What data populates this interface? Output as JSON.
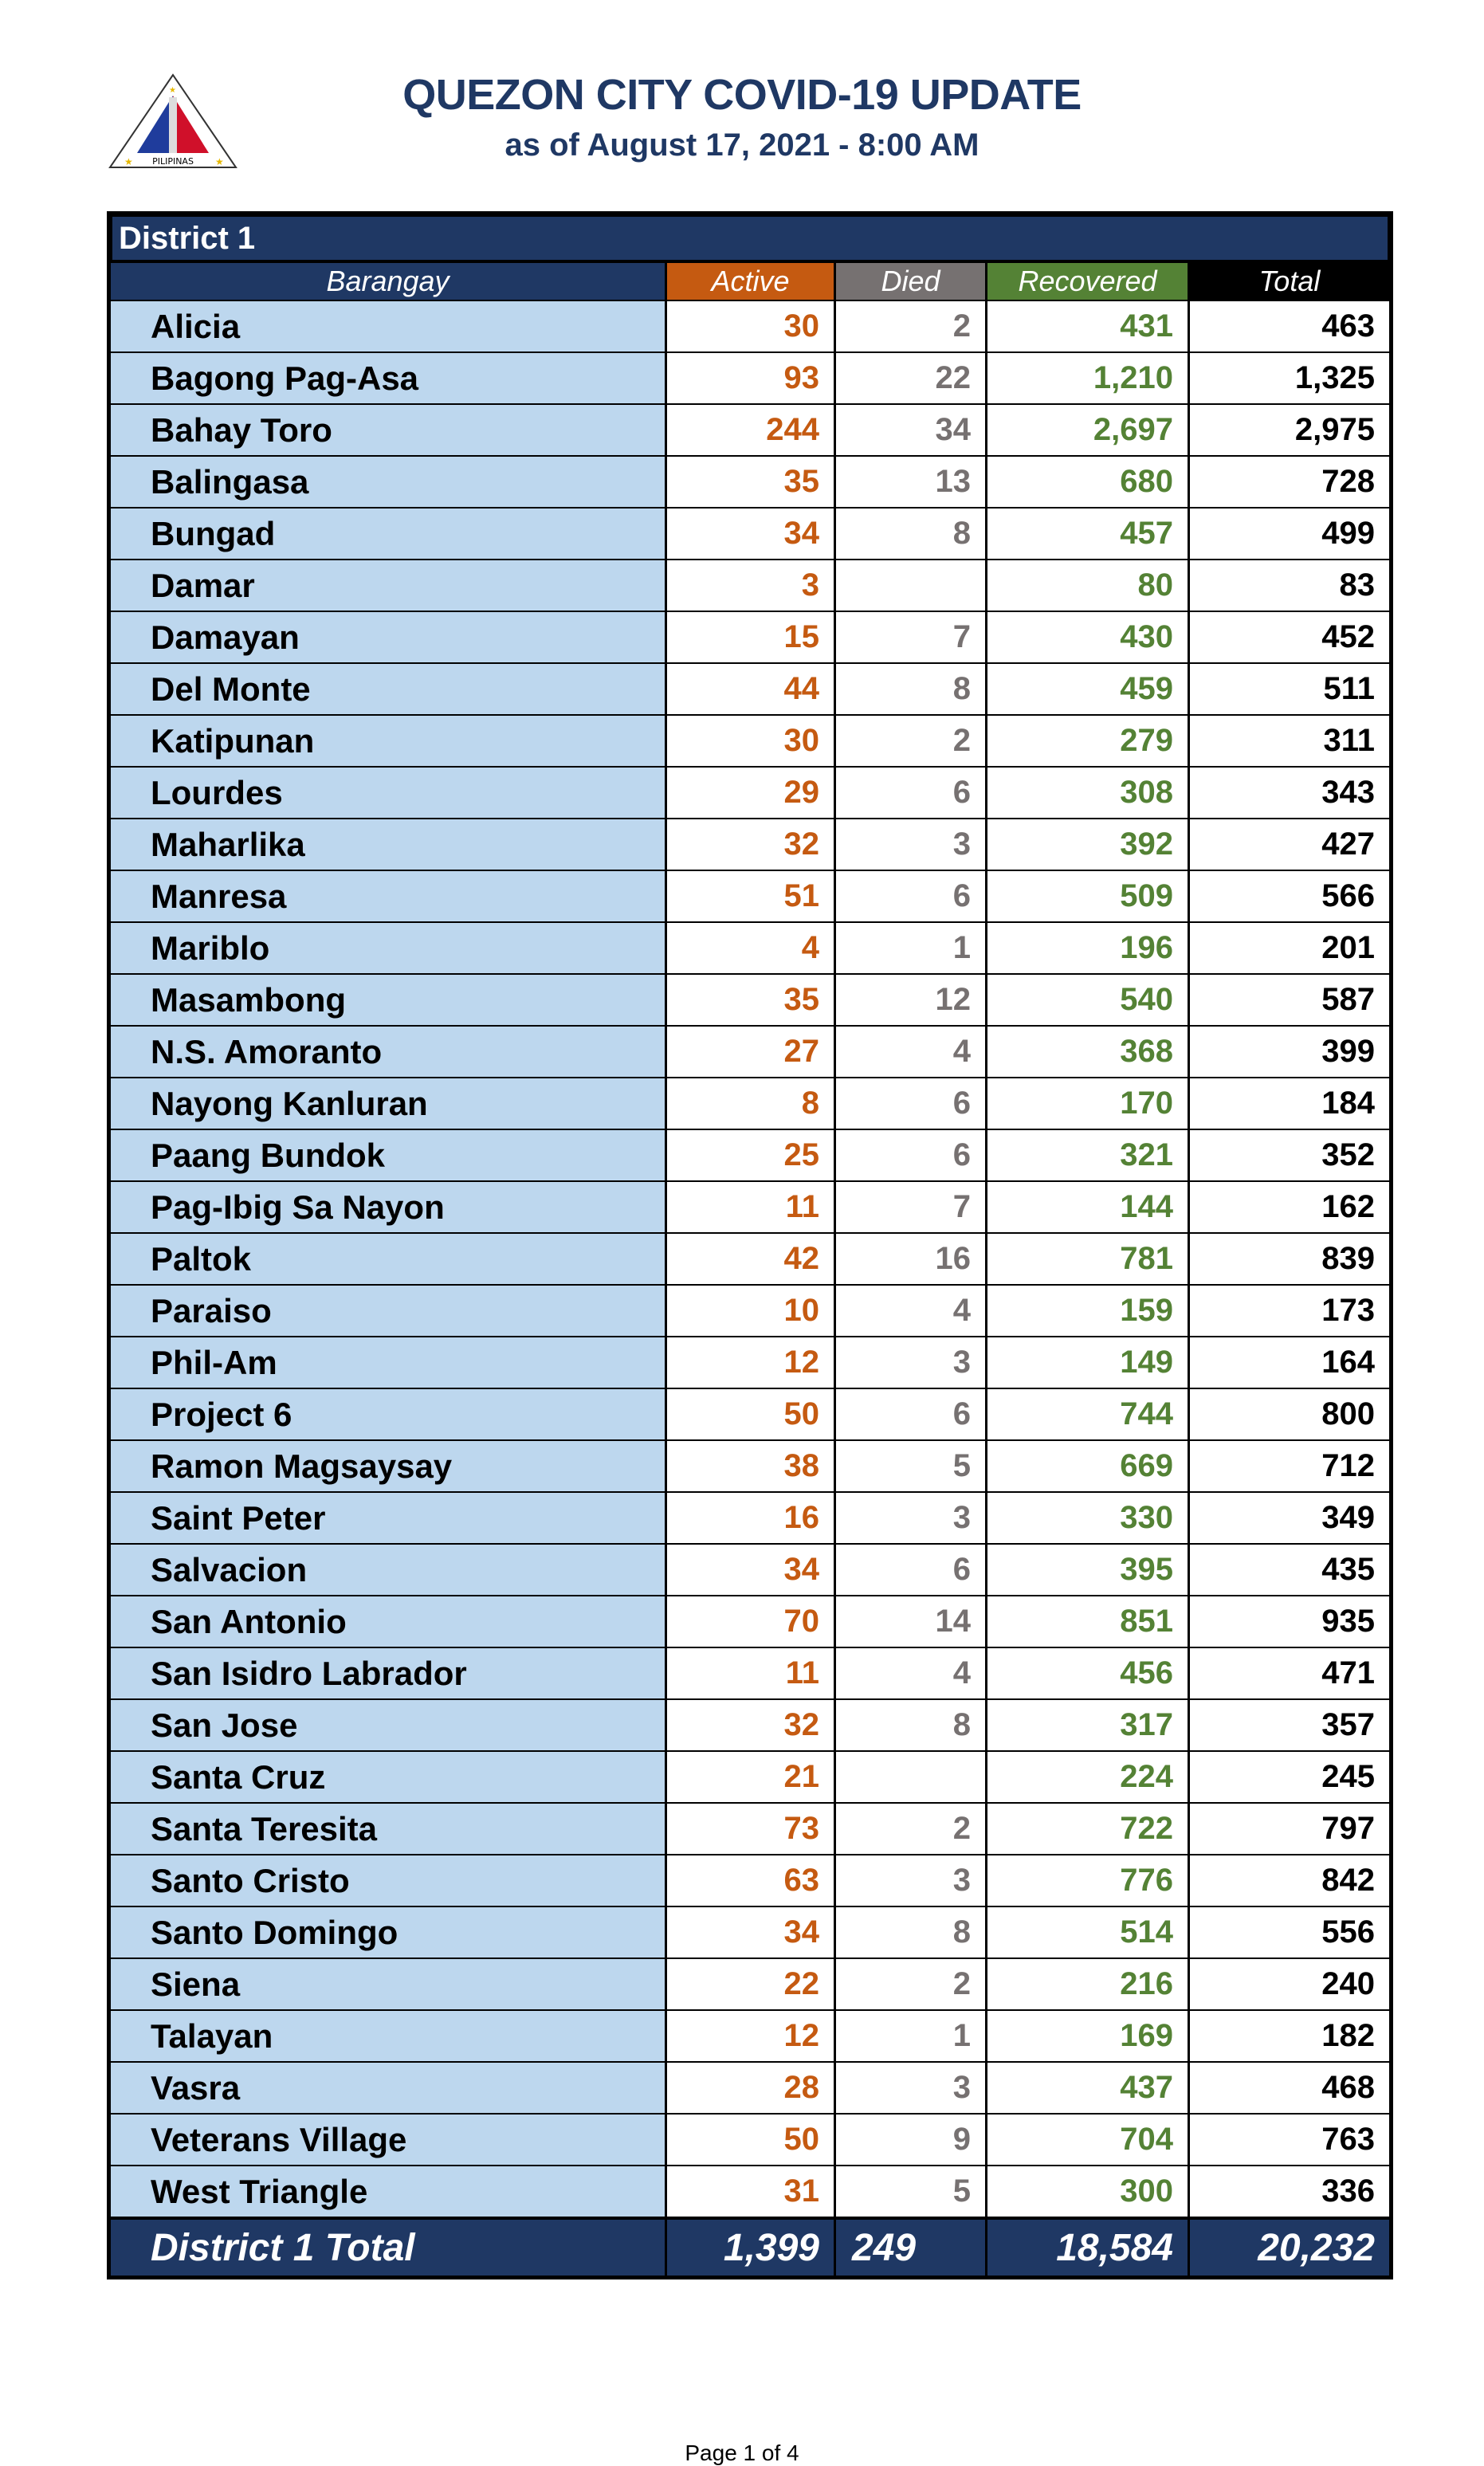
{
  "header": {
    "title": "QUEZON CITY COVID-19 UPDATE",
    "subtitle": "as of August 17, 2021 - 8:00 AM",
    "logo_text": "LUNGSOD QUEZON PILIPINAS"
  },
  "colors": {
    "navy": "#1f3864",
    "active": "#c55a11",
    "died": "#767171",
    "recovered": "#548235",
    "barangay_bg": "#bdd7ee"
  },
  "table": {
    "district": "District 1",
    "columns": [
      "Barangay",
      "Active",
      "Died",
      "Recovered",
      "Total"
    ],
    "rows": [
      [
        "Alicia",
        "30",
        "2",
        "431",
        "463"
      ],
      [
        "Bagong Pag-Asa",
        "93",
        "22",
        "1,210",
        "1,325"
      ],
      [
        "Bahay Toro",
        "244",
        "34",
        "2,697",
        "2,975"
      ],
      [
        "Balingasa",
        "35",
        "13",
        "680",
        "728"
      ],
      [
        "Bungad",
        "34",
        "8",
        "457",
        "499"
      ],
      [
        "Damar",
        "3",
        "",
        "80",
        "83"
      ],
      [
        "Damayan",
        "15",
        "7",
        "430",
        "452"
      ],
      [
        "Del Monte",
        "44",
        "8",
        "459",
        "511"
      ],
      [
        "Katipunan",
        "30",
        "2",
        "279",
        "311"
      ],
      [
        "Lourdes",
        "29",
        "6",
        "308",
        "343"
      ],
      [
        "Maharlika",
        "32",
        "3",
        "392",
        "427"
      ],
      [
        "Manresa",
        "51",
        "6",
        "509",
        "566"
      ],
      [
        "Mariblo",
        "4",
        "1",
        "196",
        "201"
      ],
      [
        "Masambong",
        "35",
        "12",
        "540",
        "587"
      ],
      [
        "N.S. Amoranto",
        "27",
        "4",
        "368",
        "399"
      ],
      [
        "Nayong Kanluran",
        "8",
        "6",
        "170",
        "184"
      ],
      [
        "Paang Bundok",
        "25",
        "6",
        "321",
        "352"
      ],
      [
        "Pag-Ibig Sa Nayon",
        "11",
        "7",
        "144",
        "162"
      ],
      [
        "Paltok",
        "42",
        "16",
        "781",
        "839"
      ],
      [
        "Paraiso",
        "10",
        "4",
        "159",
        "173"
      ],
      [
        "Phil-Am",
        "12",
        "3",
        "149",
        "164"
      ],
      [
        "Project 6",
        "50",
        "6",
        "744",
        "800"
      ],
      [
        "Ramon Magsaysay",
        "38",
        "5",
        "669",
        "712"
      ],
      [
        "Saint Peter",
        "16",
        "3",
        "330",
        "349"
      ],
      [
        "Salvacion",
        "34",
        "6",
        "395",
        "435"
      ],
      [
        "San Antonio",
        "70",
        "14",
        "851",
        "935"
      ],
      [
        "San Isidro Labrador",
        "11",
        "4",
        "456",
        "471"
      ],
      [
        "San Jose",
        "32",
        "8",
        "317",
        "357"
      ],
      [
        "Santa Cruz",
        "21",
        "",
        "224",
        "245"
      ],
      [
        "Santa Teresita",
        "73",
        "2",
        "722",
        "797"
      ],
      [
        "Santo Cristo",
        "63",
        "3",
        "776",
        "842"
      ],
      [
        "Santo Domingo",
        "34",
        "8",
        "514",
        "556"
      ],
      [
        "Siena",
        "22",
        "2",
        "216",
        "240"
      ],
      [
        "Talayan",
        "12",
        "1",
        "169",
        "182"
      ],
      [
        "Vasra",
        "28",
        "3",
        "437",
        "468"
      ],
      [
        "Veterans Village",
        "50",
        "9",
        "704",
        "763"
      ],
      [
        "West Triangle",
        "31",
        "5",
        "300",
        "336"
      ]
    ],
    "total": [
      "District 1 Total",
      "1,399",
      "249",
      "18,584",
      "20,232"
    ]
  },
  "footer": {
    "page": "Page 1 of 4"
  }
}
